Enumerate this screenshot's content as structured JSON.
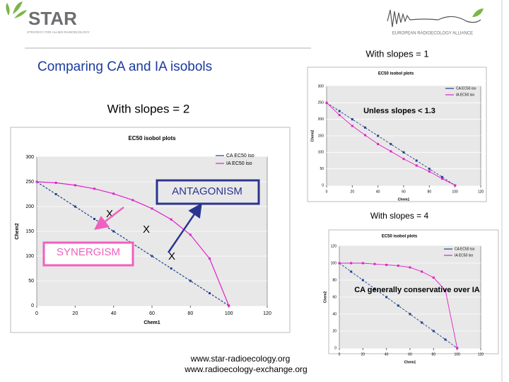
{
  "header": {
    "logo_text": "STAR",
    "logo_subtitle": "STRATEGY FOR ALLIED RADIOECOLOGY",
    "alliance": "EUROPEAN RADIOECOLOGY ALLIANCE"
  },
  "slide_title": "Comparing CA and IA isobols",
  "footer": [
    "www.star-radioecology.org",
    "www.radioecology-exchange.org"
  ],
  "chart_data": [
    {
      "type": "line",
      "caption": "With slopes = 2",
      "title": "EC50 isobol plots",
      "x_label": "Chem1",
      "y_label": "Chem2",
      "x": [
        0,
        10,
        20,
        30,
        40,
        50,
        60,
        70,
        80,
        90,
        100
      ],
      "xlim": [
        0,
        120
      ],
      "xticks": [
        0,
        20,
        40,
        60,
        80,
        100,
        120
      ],
      "ylim": [
        0,
        300
      ],
      "yticks": [
        0,
        50,
        100,
        150,
        200,
        250,
        300
      ],
      "series": [
        {
          "name": "CA EC50 iso",
          "color": "#1f3f8f",
          "values": [
            250,
            225,
            200,
            175,
            150,
            125,
            100,
            75,
            50,
            25,
            0
          ]
        },
        {
          "name": "IA EC50 iso",
          "color": "#e020c8",
          "values": [
            250,
            248,
            243,
            236,
            226,
            213,
            196,
            174,
            143,
            95,
            0
          ]
        }
      ],
      "annotations": [
        "ANTAGONISM",
        "SYNERGISM",
        "X",
        "X",
        "X"
      ]
    },
    {
      "type": "line",
      "caption": "With slopes = 1",
      "title": "EC50 isobol plots",
      "x_label": "Chem1",
      "y_label": "Chem2",
      "x": [
        0,
        10,
        20,
        30,
        40,
        50,
        60,
        70,
        80,
        90,
        100
      ],
      "xlim": [
        0,
        120
      ],
      "xticks": [
        0,
        20,
        40,
        60,
        80,
        100,
        120
      ],
      "ylim": [
        0,
        300
      ],
      "yticks": [
        0,
        50,
        100,
        150,
        200,
        250,
        300
      ],
      "series": [
        {
          "name": "CA EC50 iso",
          "color": "#1f3f8f",
          "values": [
            250,
            225,
            200,
            175,
            150,
            125,
            100,
            75,
            50,
            25,
            0
          ]
        },
        {
          "name": "IA EC50 iso",
          "color": "#e020c8",
          "values": [
            250,
            213,
            180,
            152,
            125,
            103,
            80,
            60,
            42,
            20,
            0
          ]
        }
      ],
      "annotations": [
        "Unless slopes < 1.3"
      ]
    },
    {
      "type": "line",
      "caption": "With slopes = 4",
      "title": "EC50 isobol plots",
      "x_label": "Chem1",
      "y_label": "Chem2",
      "x": [
        0,
        10,
        20,
        30,
        40,
        50,
        60,
        70,
        80,
        90,
        100
      ],
      "xlim": [
        0,
        120
      ],
      "xticks": [
        0,
        20,
        40,
        60,
        80,
        100,
        120
      ],
      "ylim": [
        0,
        120
      ],
      "yticks": [
        0,
        20,
        40,
        60,
        80,
        100,
        120
      ],
      "series": [
        {
          "name": "CA EC50 iso",
          "color": "#1f3f8f",
          "values": [
            100,
            90,
            80,
            70,
            60,
            50,
            40,
            30,
            20,
            10,
            0
          ]
        },
        {
          "name": "IA EC50 iso",
          "color": "#e020c8",
          "values": [
            100,
            100,
            100,
            99,
            98,
            97,
            95,
            90,
            83,
            68,
            0
          ]
        }
      ],
      "annotations": [
        "CA generally conservative over IA"
      ]
    }
  ]
}
